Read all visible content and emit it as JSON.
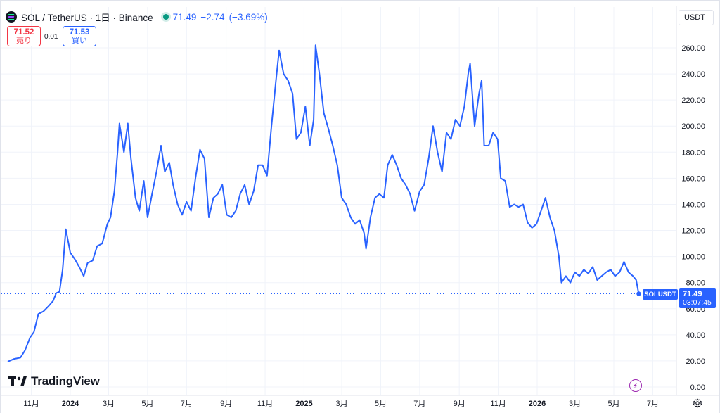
{
  "header": {
    "title": "SOL / TetherUS · 1日 · Binance",
    "last": "71.49",
    "change": "−2.74",
    "change_pct": "(−3.69%)"
  },
  "quotes": {
    "sell_price": "71.52",
    "sell_label": "売り",
    "spread": "0.01",
    "buy_price": "71.53",
    "buy_label": "買い"
  },
  "currency": "USDT",
  "watermark": "TradingView",
  "price_tag": {
    "symbol": "SOLUSDT",
    "price": "71.49",
    "countdown": "03:07:45"
  },
  "colors": {
    "line": "#2962ff",
    "grid": "#f0f3fa",
    "text": "#131722",
    "down": "#f23645",
    "up": "#2962ff"
  },
  "icons": {
    "logo": "solana-logo-icon",
    "settings": "gear-icon",
    "flash": "lightning-icon"
  },
  "chart_data": {
    "type": "line",
    "series": [
      {
        "points": [
          [
            "2023-09-25",
            19.5
          ],
          [
            "2023-10-05",
            21.5
          ],
          [
            "2023-10-15",
            22.5
          ],
          [
            "2023-10-22",
            28
          ],
          [
            "2023-10-30",
            38
          ],
          [
            "2023-11-05",
            42
          ],
          [
            "2023-11-12",
            56
          ],
          [
            "2023-11-20",
            58
          ],
          [
            "2023-11-28",
            62
          ],
          [
            "2023-12-05",
            66
          ],
          [
            "2023-12-10",
            72
          ],
          [
            "2023-12-15",
            73
          ],
          [
            "2023-12-20",
            90
          ],
          [
            "2023-12-25",
            121
          ],
          [
            "2024-01-01",
            103
          ],
          [
            "2024-01-08",
            98
          ],
          [
            "2024-01-15",
            92
          ],
          [
            "2024-01-22",
            85
          ],
          [
            "2024-01-28",
            95
          ],
          [
            "2024-02-05",
            97
          ],
          [
            "2024-02-12",
            108
          ],
          [
            "2024-02-20",
            110
          ],
          [
            "2024-02-28",
            125
          ],
          [
            "2024-03-04",
            130
          ],
          [
            "2024-03-10",
            150
          ],
          [
            "2024-03-15",
            180
          ],
          [
            "2024-03-18",
            202
          ],
          [
            "2024-03-25",
            180
          ],
          [
            "2024-03-31",
            202
          ],
          [
            "2024-04-05",
            175
          ],
          [
            "2024-04-12",
            145
          ],
          [
            "2024-04-18",
            135
          ],
          [
            "2024-04-25",
            158
          ],
          [
            "2024-05-01",
            130
          ],
          [
            "2024-05-08",
            148
          ],
          [
            "2024-05-15",
            165
          ],
          [
            "2024-05-22",
            185
          ],
          [
            "2024-05-28",
            165
          ],
          [
            "2024-06-04",
            172
          ],
          [
            "2024-06-10",
            155
          ],
          [
            "2024-06-17",
            140
          ],
          [
            "2024-06-24",
            132
          ],
          [
            "2024-07-01",
            142
          ],
          [
            "2024-07-08",
            135
          ],
          [
            "2024-07-15",
            160
          ],
          [
            "2024-07-22",
            182
          ],
          [
            "2024-07-29",
            175
          ],
          [
            "2024-08-05",
            130
          ],
          [
            "2024-08-12",
            145
          ],
          [
            "2024-08-19",
            148
          ],
          [
            "2024-08-26",
            155
          ],
          [
            "2024-09-02",
            132
          ],
          [
            "2024-09-09",
            130
          ],
          [
            "2024-09-16",
            135
          ],
          [
            "2024-09-23",
            148
          ],
          [
            "2024-09-30",
            155
          ],
          [
            "2024-10-07",
            140
          ],
          [
            "2024-10-14",
            150
          ],
          [
            "2024-10-21",
            170
          ],
          [
            "2024-10-28",
            170
          ],
          [
            "2024-11-04",
            162
          ],
          [
            "2024-11-11",
            200
          ],
          [
            "2024-11-18",
            235
          ],
          [
            "2024-11-23",
            258
          ],
          [
            "2024-11-30",
            240
          ],
          [
            "2024-12-07",
            235
          ],
          [
            "2024-12-14",
            225
          ],
          [
            "2024-12-20",
            190
          ],
          [
            "2024-12-27",
            195
          ],
          [
            "2025-01-03",
            215
          ],
          [
            "2025-01-10",
            185
          ],
          [
            "2025-01-16",
            205
          ],
          [
            "2025-01-19",
            262
          ],
          [
            "2025-01-25",
            240
          ],
          [
            "2025-02-01",
            210
          ],
          [
            "2025-02-08",
            198
          ],
          [
            "2025-02-15",
            185
          ],
          [
            "2025-02-22",
            170
          ],
          [
            "2025-03-01",
            145
          ],
          [
            "2025-03-08",
            140
          ],
          [
            "2025-03-15",
            130
          ],
          [
            "2025-03-22",
            125
          ],
          [
            "2025-03-29",
            128
          ],
          [
            "2025-04-05",
            118
          ],
          [
            "2025-04-08",
            106
          ],
          [
            "2025-04-15",
            130
          ],
          [
            "2025-04-22",
            145
          ],
          [
            "2025-04-29",
            148
          ],
          [
            "2025-05-06",
            145
          ],
          [
            "2025-05-12",
            170
          ],
          [
            "2025-05-19",
            178
          ],
          [
            "2025-05-26",
            170
          ],
          [
            "2025-06-02",
            160
          ],
          [
            "2025-06-09",
            155
          ],
          [
            "2025-06-16",
            148
          ],
          [
            "2025-06-23",
            135
          ],
          [
            "2025-07-01",
            150
          ],
          [
            "2025-07-08",
            155
          ],
          [
            "2025-07-15",
            175
          ],
          [
            "2025-07-22",
            200
          ],
          [
            "2025-07-29",
            180
          ],
          [
            "2025-08-05",
            165
          ],
          [
            "2025-08-12",
            195
          ],
          [
            "2025-08-19",
            190
          ],
          [
            "2025-08-26",
            205
          ],
          [
            "2025-09-02",
            200
          ],
          [
            "2025-09-09",
            215
          ],
          [
            "2025-09-15",
            240
          ],
          [
            "2025-09-18",
            248
          ],
          [
            "2025-09-25",
            200
          ],
          [
            "2025-10-02",
            225
          ],
          [
            "2025-10-06",
            235
          ],
          [
            "2025-10-10",
            185
          ],
          [
            "2025-10-17",
            185
          ],
          [
            "2025-10-24",
            195
          ],
          [
            "2025-10-31",
            190
          ],
          [
            "2025-11-05",
            160
          ],
          [
            "2025-11-12",
            158
          ],
          [
            "2025-11-19",
            138
          ],
          [
            "2025-11-26",
            140
          ],
          [
            "2025-12-03",
            138
          ],
          [
            "2025-12-10",
            140
          ],
          [
            "2025-12-17",
            126
          ],
          [
            "2025-12-24",
            122
          ],
          [
            "2025-12-31",
            125
          ],
          [
            "2026-01-07",
            135
          ],
          [
            "2026-01-14",
            145
          ],
          [
            "2026-01-21",
            130
          ],
          [
            "2026-01-28",
            120
          ],
          [
            "2026-02-04",
            100
          ],
          [
            "2026-02-08",
            80
          ],
          [
            "2026-02-15",
            85
          ],
          [
            "2026-02-22",
            80
          ],
          [
            "2026-03-01",
            88
          ],
          [
            "2026-03-08",
            85
          ],
          [
            "2026-03-15",
            90
          ],
          [
            "2026-03-22",
            87
          ],
          [
            "2026-03-29",
            92
          ],
          [
            "2026-04-05",
            82
          ],
          [
            "2026-04-12",
            85
          ],
          [
            "2026-04-19",
            88
          ],
          [
            "2026-04-26",
            90
          ],
          [
            "2026-05-03",
            85
          ],
          [
            "2026-05-10",
            88
          ],
          [
            "2026-05-17",
            96
          ],
          [
            "2026-05-24",
            88
          ],
          [
            "2026-05-31",
            85
          ],
          [
            "2026-06-05",
            82
          ],
          [
            "2026-06-09",
            71.49
          ]
        ]
      }
    ],
    "x_ticks": [
      {
        "date": "2023-11-01",
        "label": "11月"
      },
      {
        "date": "2024-01-01",
        "label": "2024"
      },
      {
        "date": "2024-03-01",
        "label": "3月"
      },
      {
        "date": "2024-05-01",
        "label": "5月"
      },
      {
        "date": "2024-07-01",
        "label": "7月"
      },
      {
        "date": "2024-09-01",
        "label": "9月"
      },
      {
        "date": "2024-11-01",
        "label": "11月"
      },
      {
        "date": "2025-01-01",
        "label": "2025"
      },
      {
        "date": "2025-03-01",
        "label": "3月"
      },
      {
        "date": "2025-05-01",
        "label": "5月"
      },
      {
        "date": "2025-07-01",
        "label": "7月"
      },
      {
        "date": "2025-09-01",
        "label": "9月"
      },
      {
        "date": "2025-11-01",
        "label": "11月"
      },
      {
        "date": "2026-01-01",
        "label": "2026"
      },
      {
        "date": "2026-03-01",
        "label": "3月"
      },
      {
        "date": "2026-05-01",
        "label": "5月"
      },
      {
        "date": "2026-07-01",
        "label": "7月"
      }
    ],
    "y_ticks": [
      0,
      20,
      40,
      60,
      80,
      100,
      120,
      140,
      160,
      180,
      200,
      220,
      240,
      260
    ],
    "ylim": [
      0,
      260
    ],
    "last_value": 71.49,
    "grid": true,
    "axis_position": "right"
  }
}
